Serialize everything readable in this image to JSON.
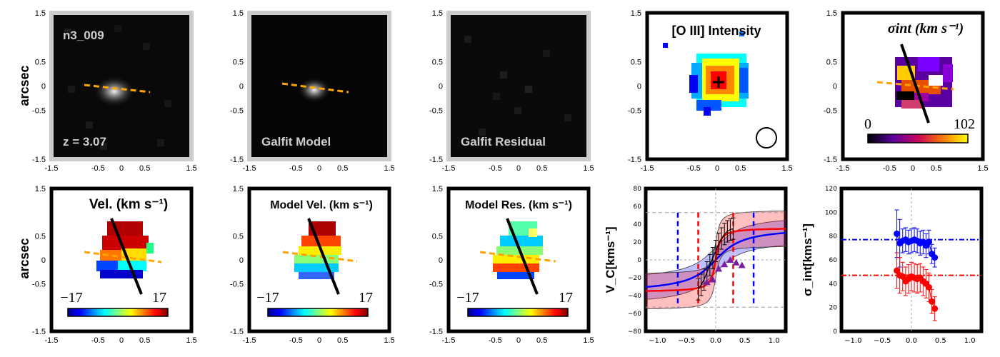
{
  "figure": {
    "ylabel_left": "arcsec",
    "object_id": "n3_009",
    "redshift_label": "z = 3.07"
  },
  "panels": {
    "image": {
      "id": "image-panel"
    },
    "galfit_model": {
      "label": "Galfit Model"
    },
    "galfit_residual": {
      "label": "Galfit Residual"
    },
    "oiii": {
      "title": "[O III] Intensity"
    },
    "sigma_map": {
      "title": "σint (km s⁻¹)",
      "cbar_min": "0",
      "cbar_max": "102"
    },
    "vel": {
      "title": "Vel. (km s⁻¹)",
      "cbar_min": "−17",
      "cbar_max": "17"
    },
    "model_vel": {
      "title": "Model Vel. (km s⁻¹)",
      "cbar_min": "−17",
      "cbar_max": "17"
    },
    "model_res": {
      "title": "Model Res. (km s⁻¹)",
      "cbar_min": "−17",
      "cbar_max": "17"
    }
  },
  "map_axes": {
    "xticks": [
      "-1.5",
      "-0.5",
      "0",
      "0.5",
      "1.5"
    ],
    "yticks": [
      "1.5",
      "0.5",
      "0",
      "-0.5",
      "-1.5"
    ]
  },
  "colors": {
    "dash_pa": "#ffa500",
    "blue": "#0000ff",
    "red": "#ff0000",
    "purple": "#7b1fa2",
    "frame": "#000000",
    "img_frame": "#cccccc"
  },
  "chart_data": [
    {
      "type": "line",
      "id": "rotation-curve",
      "ylabel": "V_C[kms⁻¹]",
      "xlim": [
        -1.2,
        1.2
      ],
      "ylim": [
        -80,
        80
      ],
      "xticks": [
        "−1.0",
        "−0.5",
        "0.0",
        "0.5",
        "1.0"
      ],
      "yticks": [
        "80",
        "60",
        "40",
        "20",
        "0",
        "−20",
        "−40",
        "−60",
        "−80"
      ],
      "series": [
        {
          "color": "blue",
          "model": "arctan",
          "vmax": 37,
          "rt": 0.35,
          "band": 14
        },
        {
          "color": "red",
          "model": "arctan",
          "vmax": 36,
          "rt": 0.06,
          "band": 20
        },
        {
          "color": "black",
          "x": [
            -0.3,
            -0.25,
            -0.2,
            -0.15,
            -0.1,
            -0.05,
            0.0,
            0.05,
            0.1,
            0.15,
            0.2,
            0.25,
            0.3
          ],
          "y": [
            -33,
            -28,
            -22,
            -14,
            -6,
            2,
            10,
            18,
            24,
            29,
            32,
            34,
            35
          ],
          "err": 12
        },
        {
          "color": "purple",
          "x": [
            -0.15,
            -0.05,
            0.05,
            0.15,
            0.25,
            0.35,
            0.45
          ],
          "y": [
            -25,
            -22,
            -10,
            -5,
            0,
            -3,
            -6
          ]
        }
      ],
      "vlines_blue": [
        -0.65,
        0.65
      ],
      "vlines_red": [
        -0.3,
        0.3
      ],
      "hlines_gray": [
        53,
        -53
      ]
    },
    {
      "type": "scatter",
      "id": "sigma-profile",
      "ylabel": "σ_int[kms⁻¹]",
      "xlim": [
        -1.2,
        1.2
      ],
      "ylim": [
        0,
        120
      ],
      "xticks": [
        "−1.0",
        "−0.5",
        "0.0",
        "0.5",
        "1.0"
      ],
      "yticks": [
        "120",
        "100",
        "80",
        "60",
        "40",
        "20",
        "0"
      ],
      "series": [
        {
          "color": "blue",
          "x": [
            -0.25,
            -0.2,
            -0.15,
            -0.1,
            -0.05,
            0.0,
            0.05,
            0.1,
            0.15,
            0.2,
            0.25,
            0.3,
            0.35,
            0.4
          ],
          "y": [
            82,
            74,
            76,
            77,
            75,
            76,
            77,
            76,
            74,
            75,
            72,
            75,
            65,
            62
          ],
          "err": [
            20,
            20,
            10,
            10,
            10,
            10,
            10,
            10,
            10,
            10,
            10,
            10,
            8,
            8
          ]
        },
        {
          "color": "red",
          "x": [
            -0.25,
            -0.2,
            -0.15,
            -0.1,
            -0.05,
            0.0,
            0.05,
            0.1,
            0.15,
            0.2,
            0.25,
            0.3,
            0.35,
            0.4
          ],
          "y": [
            51,
            47,
            46,
            42,
            44,
            46,
            45,
            44,
            45,
            42,
            40,
            37,
            25,
            19
          ],
          "err": [
            15,
            15,
            12,
            12,
            12,
            12,
            12,
            12,
            12,
            12,
            12,
            12,
            10,
            10
          ]
        }
      ],
      "hline_blue": 77,
      "hline_red": 47
    }
  ]
}
